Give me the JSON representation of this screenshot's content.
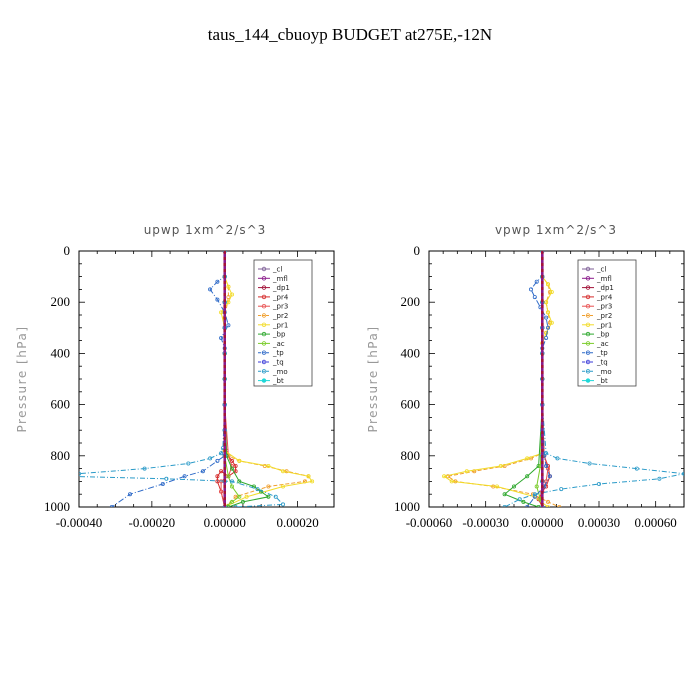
{
  "title": "taus_144_cbuoyp  BUDGET at275E,-12N",
  "colors": {
    "cl": "#7d5d96",
    "mfl": "#8a1a8a",
    "dp1": "#a3133a",
    "pr4": "#d52a2a",
    "pr3": "#e85050",
    "pr2": "#f0a030",
    "pr1": "#f2dc2a",
    "bp": "#2ea82e",
    "ac": "#7acc2a",
    "tp": "#2e6ac8",
    "tq": "#3a3ad8",
    "mo": "#2a9ac8",
    "bt": "#20d8d8"
  },
  "chart_data": [
    {
      "type": "line",
      "title": "upwp   1xm^2/s^3",
      "ylabel": "Pressure [hPa]",
      "xlim": [
        -0.0004,
        0.0003
      ],
      "ylim": [
        1000,
        0
      ],
      "y_reversed": true,
      "xticks": [
        -0.0004,
        -0.0002,
        0.0,
        0.0002
      ],
      "xtick_labels": [
        "-0.00040",
        "-0.00020",
        "0.00000",
        "0.00020"
      ],
      "yticks": [
        0,
        200,
        400,
        600,
        800,
        1000
      ],
      "ytick_labels": [
        "0",
        "200",
        "400",
        "600",
        "800",
        "1000"
      ],
      "legend_loc": "upper-right",
      "legend": [
        "_cl",
        "_mfl",
        "_dp1",
        "_pr4",
        "_pr3",
        "_pr2",
        "_pr1",
        "_bp",
        "_ac",
        "_tp",
        "_tq",
        "_mo",
        "_bt"
      ],
      "series": [
        {
          "name": "_cl",
          "key": "cl",
          "x": [
            0,
            0,
            0,
            0,
            0,
            0,
            0,
            0,
            0,
            0,
            0
          ],
          "y": [
            0,
            100,
            200,
            300,
            400,
            500,
            600,
            700,
            800,
            900,
            1000
          ]
        },
        {
          "name": "_mfl",
          "key": "mfl",
          "x": [
            0,
            0,
            0,
            0,
            0,
            0,
            0,
            0,
            0,
            0,
            0
          ],
          "y": [
            0,
            100,
            200,
            300,
            400,
            500,
            600,
            700,
            800,
            900,
            1000
          ]
        },
        {
          "name": "_dp1",
          "key": "dp1",
          "x": [
            0,
            0,
            0,
            0,
            0,
            0,
            0,
            0,
            0,
            0,
            0
          ],
          "y": [
            0,
            100,
            200,
            300,
            400,
            500,
            600,
            700,
            800,
            900,
            1000
          ]
        },
        {
          "name": "_pr4",
          "key": "pr4",
          "x": [
            0,
            0,
            0,
            0,
            0,
            0,
            0,
            5e-06,
            1e-05,
            2e-05,
            3e-05,
            3e-05,
            1e-05,
            -1e-05,
            -2e-05,
            -2e-05,
            -1e-05,
            0
          ],
          "y": [
            0,
            100,
            200,
            300,
            400,
            500,
            600,
            780,
            800,
            820,
            840,
            860,
            880,
            860,
            880,
            900,
            940,
            1000
          ]
        },
        {
          "name": "_pr3",
          "key": "pr3",
          "x": [
            0,
            0,
            0,
            0,
            0,
            0,
            0,
            1e-05,
            2e-05,
            1e-05,
            -1e-05,
            -1e-05,
            0
          ],
          "y": [
            0,
            100,
            200,
            300,
            400,
            500,
            600,
            800,
            840,
            880,
            900,
            940,
            1000
          ]
        },
        {
          "name": "_pr2",
          "key": "pr2",
          "x": [
            0,
            0,
            1e-05,
            1e-05,
            0,
            0,
            0,
            0,
            0,
            1e-05,
            4e-05,
            0.00011,
            0.00017,
            0.00023,
            0.00022,
            0.00012,
            3e-05,
            0
          ],
          "y": [
            0,
            100,
            140,
            180,
            260,
            300,
            400,
            600,
            780,
            800,
            820,
            840,
            860,
            880,
            900,
            920,
            960,
            1000
          ]
        },
        {
          "name": "_pr1",
          "key": "pr1",
          "x": [
            0,
            0,
            1e-05,
            2e-05,
            1e-05,
            -1e-05,
            0,
            0,
            0,
            0,
            4e-05,
            0.00012,
            0.00016,
            0.00023,
            0.00024,
            0.00016,
            6e-05,
            0
          ],
          "y": [
            0,
            100,
            140,
            170,
            200,
            240,
            300,
            400,
            600,
            780,
            820,
            840,
            860,
            880,
            900,
            920,
            960,
            1000
          ]
        },
        {
          "name": "_bp",
          "key": "bp",
          "x": [
            0,
            0,
            0,
            0,
            0,
            0,
            0,
            5e-06,
            2e-05,
            4e-05,
            8e-05,
            0.0001,
            0.00012,
            5e-05,
            1e-05
          ],
          "y": [
            0,
            100,
            200,
            300,
            400,
            500,
            600,
            800,
            850,
            900,
            920,
            940,
            960,
            980,
            1000
          ]
        },
        {
          "name": "_ac",
          "key": "ac",
          "x": [
            0,
            0,
            0,
            0,
            0,
            0,
            0,
            0,
            1e-05,
            2e-05,
            4e-05,
            2e-05,
            0
          ],
          "y": [
            0,
            100,
            200,
            300,
            400,
            500,
            600,
            800,
            880,
            920,
            960,
            980,
            1000
          ]
        },
        {
          "name": "_tp",
          "key": "tp",
          "x": [
            0,
            0,
            -2e-05,
            -4e-05,
            -2e-05,
            0,
            1e-05,
            -1e-05,
            0,
            0,
            0,
            -2e-05,
            -6e-05,
            -0.00011,
            -0.00017,
            -0.00026,
            -0.00031
          ],
          "y": [
            0,
            100,
            120,
            150,
            190,
            240,
            290,
            340,
            380,
            600,
            800,
            820,
            860,
            880,
            910,
            950,
            1000
          ]
        },
        {
          "name": "_tq",
          "key": "tq",
          "x": [
            0,
            0,
            0,
            0,
            0,
            0,
            0,
            0,
            0,
            0,
            0
          ],
          "y": [
            0,
            100,
            200,
            300,
            400,
            500,
            600,
            700,
            800,
            900,
            1000
          ]
        },
        {
          "name": "_mo",
          "key": "mo",
          "x": [
            0,
            0,
            0,
            0,
            0,
            0,
            0,
            -5e-06,
            -1e-05,
            -4e-05,
            -0.0001,
            -0.00022,
            -0.0004,
            -0.00043,
            -0.00016,
            2e-05,
            9e-05,
            0.00014,
            0.00016,
            3e-05
          ],
          "y": [
            0,
            100,
            200,
            300,
            400,
            500,
            600,
            770,
            790,
            810,
            830,
            850,
            870,
            880,
            890,
            900,
            930,
            960,
            990,
            1000
          ]
        },
        {
          "name": "_bt",
          "key": "bt",
          "x": [
            0,
            0,
            0,
            0,
            0,
            0,
            0,
            0,
            0,
            0,
            0
          ],
          "y": [
            0,
            100,
            200,
            300,
            400,
            500,
            600,
            700,
            800,
            900,
            1000
          ]
        }
      ]
    },
    {
      "type": "line",
      "title": "vpwp   1xm^2/s^3",
      "ylabel": "Pressure [hPa]",
      "xlim": [
        -0.0006,
        0.00075
      ],
      "ylim": [
        1000,
        0
      ],
      "y_reversed": true,
      "xticks": [
        -0.0006,
        -0.0003,
        0.0,
        0.0003,
        0.0006
      ],
      "xtick_labels": [
        "-0.00060",
        "-0.00030",
        "0.00000",
        "0.00030",
        "0.00060"
      ],
      "yticks": [
        0,
        200,
        400,
        600,
        800,
        1000
      ],
      "ytick_labels": [
        "0",
        "200",
        "400",
        "600",
        "800",
        "1000"
      ],
      "legend_loc": "upper-right",
      "legend": [
        "_cl",
        "_mfl",
        "_dp1",
        "_pr4",
        "_pr3",
        "_pr2",
        "_pr1",
        "_bp",
        "_ac",
        "_tp",
        "_tq",
        "_mo",
        "_bt"
      ],
      "series": [
        {
          "name": "_cl",
          "key": "cl",
          "x": [
            0,
            0,
            0,
            0,
            0,
            0,
            0,
            0,
            0,
            0,
            0
          ],
          "y": [
            0,
            100,
            200,
            300,
            400,
            500,
            600,
            700,
            800,
            900,
            1000
          ]
        },
        {
          "name": "_mfl",
          "key": "mfl",
          "x": [
            0,
            0,
            0,
            0,
            0,
            0,
            0,
            0,
            0,
            0,
            0
          ],
          "y": [
            0,
            100,
            200,
            300,
            400,
            500,
            600,
            700,
            800,
            900,
            1000
          ]
        },
        {
          "name": "_dp1",
          "key": "dp1",
          "x": [
            0,
            0,
            0,
            0,
            0,
            0,
            0,
            0,
            0,
            0,
            0
          ],
          "y": [
            0,
            100,
            200,
            300,
            400,
            500,
            600,
            700,
            800,
            900,
            1000
          ]
        },
        {
          "name": "_pr4",
          "key": "pr4",
          "x": [
            0,
            0,
            0,
            0,
            0,
            0,
            0,
            1e-05,
            3e-05,
            4e-05,
            2e-05,
            0,
            -2e-05,
            0
          ],
          "y": [
            0,
            100,
            200,
            300,
            400,
            500,
            600,
            800,
            840,
            880,
            920,
            940,
            970,
            1000
          ]
        },
        {
          "name": "_pr3",
          "key": "pr3",
          "x": [
            0,
            0,
            0,
            0,
            0,
            0,
            0,
            1e-05,
            3e-05,
            2e-05,
            0,
            -1e-05,
            0
          ],
          "y": [
            0,
            100,
            200,
            300,
            400,
            500,
            600,
            800,
            850,
            900,
            940,
            970,
            1000
          ]
        },
        {
          "name": "_pr2",
          "key": "pr2",
          "x": [
            0,
            0,
            3e-05,
            4e-05,
            2e-05,
            3e-05,
            4e-05,
            2e-05,
            0,
            0,
            0,
            -6e-05,
            -0.0002,
            -0.00036,
            -0.0005,
            -0.00046,
            -0.00026,
            -5e-05,
            3e-05,
            9e-05
          ],
          "y": [
            0,
            100,
            130,
            160,
            200,
            240,
            280,
            320,
            360,
            600,
            790,
            810,
            840,
            860,
            880,
            900,
            920,
            950,
            980,
            1000
          ]
        },
        {
          "name": "_pr1",
          "key": "pr1",
          "x": [
            0,
            0,
            3e-05,
            5e-05,
            2e-05,
            3e-05,
            5e-05,
            2e-05,
            0,
            0,
            0,
            -8e-05,
            -0.00022,
            -0.0004,
            -0.00052,
            -0.00048,
            -0.00024,
            -4e-05,
            3e-05
          ],
          "y": [
            0,
            100,
            130,
            160,
            200,
            240,
            280,
            320,
            360,
            600,
            790,
            810,
            840,
            860,
            880,
            900,
            920,
            960,
            1000
          ]
        },
        {
          "name": "_bp",
          "key": "bp",
          "x": [
            0,
            0,
            0,
            0,
            0,
            0,
            0,
            -2e-05,
            -8e-05,
            -0.00015,
            -0.0002,
            -0.0001,
            -2e-05
          ],
          "y": [
            0,
            100,
            200,
            300,
            400,
            500,
            600,
            840,
            880,
            920,
            950,
            980,
            1000
          ]
        },
        {
          "name": "_ac",
          "key": "ac",
          "x": [
            0,
            0,
            0,
            0,
            0,
            0,
            0,
            -1e-05,
            -3e-05,
            -1e-05,
            0
          ],
          "y": [
            0,
            100,
            200,
            300,
            400,
            500,
            600,
            840,
            920,
            970,
            1000
          ]
        },
        {
          "name": "_tp",
          "key": "tp",
          "x": [
            0,
            0,
            -3e-05,
            -6e-05,
            -4e-05,
            -1e-05,
            2e-05,
            3e-05,
            2e-05,
            0,
            0,
            1e-05,
            2e-05,
            4e-05,
            1e-05,
            -4e-05,
            -8e-05
          ],
          "y": [
            0,
            100,
            120,
            150,
            180,
            220,
            260,
            300,
            340,
            380,
            600,
            800,
            840,
            880,
            920,
            960,
            1000
          ]
        },
        {
          "name": "_tq",
          "key": "tq",
          "x": [
            0,
            0,
            0,
            0,
            0,
            0,
            0,
            0,
            0,
            0,
            0
          ],
          "y": [
            0,
            100,
            200,
            300,
            400,
            500,
            600,
            700,
            800,
            900,
            1000
          ]
        },
        {
          "name": "_mo",
          "key": "mo",
          "x": [
            0,
            0,
            0,
            0,
            0,
            0,
            0,
            2e-05,
            8e-05,
            0.00025,
            0.0005,
            0.00075,
            0.00062,
            0.0003,
            0.0001,
            -4e-05,
            -0.00012,
            -0.0002
          ],
          "y": [
            0,
            100,
            200,
            300,
            400,
            500,
            600,
            790,
            810,
            830,
            850,
            870,
            890,
            910,
            930,
            950,
            970,
            1000
          ]
        },
        {
          "name": "_bt",
          "key": "bt",
          "x": [
            0,
            0,
            0,
            0,
            0,
            0,
            0,
            0,
            0,
            0,
            0
          ],
          "y": [
            0,
            100,
            200,
            300,
            400,
            500,
            600,
            700,
            800,
            900,
            1000
          ]
        }
      ]
    }
  ]
}
